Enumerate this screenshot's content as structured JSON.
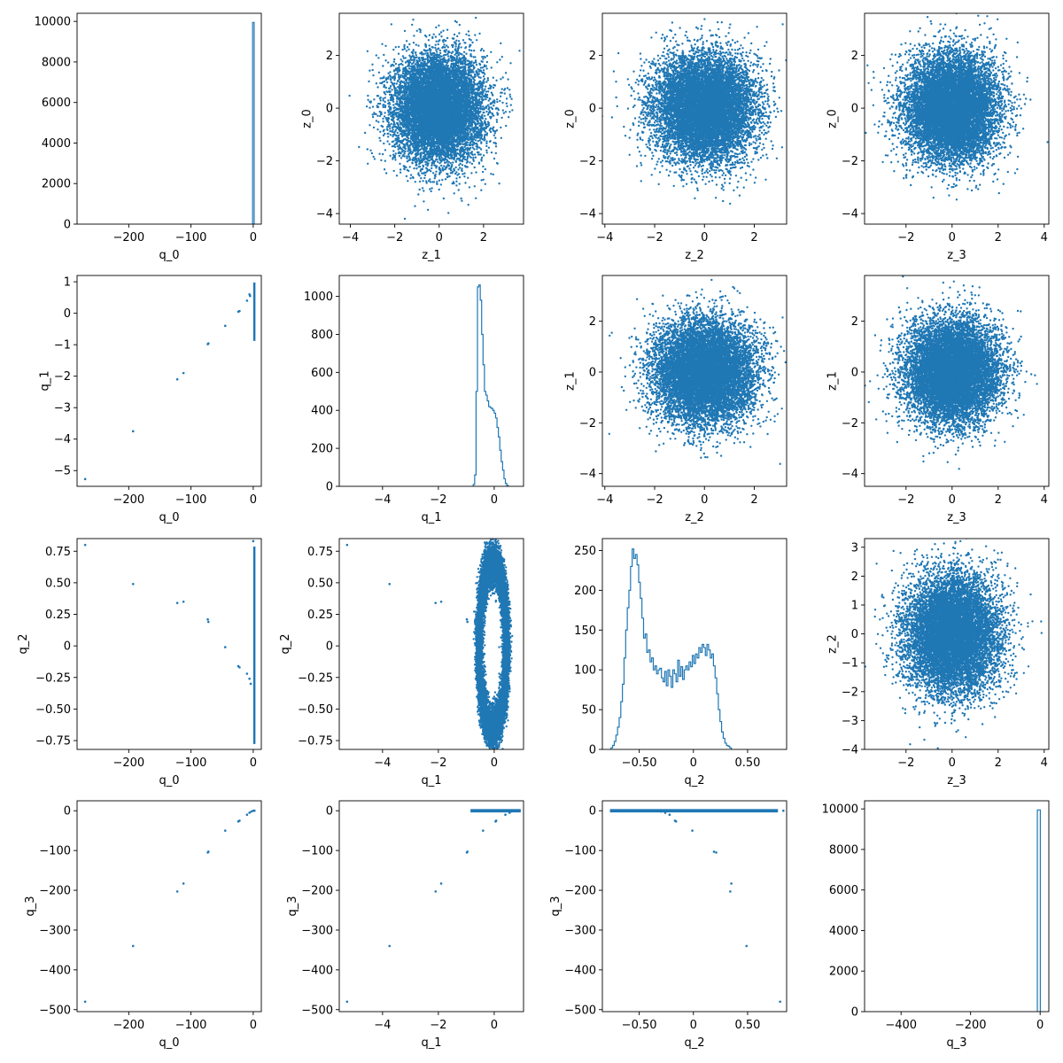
{
  "style": {
    "series_color": "#1f77b4",
    "grid": false,
    "legend": null
  },
  "chart_data": [
    {
      "type": "bar",
      "histtype": "step",
      "row": 0,
      "col": 0,
      "xlabel": "q_0",
      "ylabel": "",
      "xlim": [
        -283,
        13
      ],
      "ylim": [
        0,
        10400
      ],
      "xticks": [
        -200,
        -100,
        0
      ],
      "yticks": [
        0,
        2000,
        4000,
        6000,
        8000,
        10000
      ],
      "bins": [
        {
          "x0": -1,
          "x1": 1.5,
          "count": 9950
        }
      ]
    },
    {
      "type": "scatter",
      "dist": "normal",
      "row": 0,
      "col": 1,
      "xlabel": "z_1",
      "ylabel": "z_0",
      "xlim": [
        -4.5,
        3.8
      ],
      "ylim": [
        -4.4,
        3.6
      ],
      "xticks": [
        -4,
        -2,
        0,
        2
      ],
      "yticks": [
        -4,
        -2,
        0,
        2
      ],
      "n_points": 10000
    },
    {
      "type": "scatter",
      "dist": "normal",
      "row": 0,
      "col": 2,
      "xlabel": "z_2",
      "ylabel": "z_0",
      "xlim": [
        -4.1,
        3.3
      ],
      "ylim": [
        -4.4,
        3.6
      ],
      "xticks": [
        -4,
        -2,
        0,
        2
      ],
      "yticks": [
        -4,
        -2,
        0,
        2
      ],
      "n_points": 10000
    },
    {
      "type": "scatter",
      "dist": "normal",
      "row": 0,
      "col": 3,
      "xlabel": "z_3",
      "ylabel": "z_0",
      "xlim": [
        -3.8,
        4.2
      ],
      "ylim": [
        -4.4,
        3.6
      ],
      "xticks": [
        -2,
        0,
        2,
        4
      ],
      "yticks": [
        -4,
        -2,
        0,
        2
      ],
      "n_points": 10000
    },
    {
      "type": "scatter",
      "dist": "points",
      "row": 1,
      "col": 0,
      "xlabel": "q_0",
      "ylabel": "q_1",
      "xlim": [
        -283,
        13
      ],
      "ylim": [
        -5.5,
        1.2
      ],
      "xticks": [
        -200,
        -100,
        0
      ],
      "yticks": [
        -5,
        -4,
        -3,
        -2,
        -1,
        0,
        1
      ],
      "points": [
        [
          -270,
          -5.27
        ],
        [
          -193,
          -3.75
        ],
        [
          -122,
          -2.1
        ],
        [
          -112,
          -1.9
        ],
        [
          -73,
          -0.98
        ],
        [
          -72,
          -0.96
        ],
        [
          -45,
          -0.4
        ],
        [
          -24,
          0.05
        ],
        [
          -22,
          0.07
        ],
        [
          -10,
          0.4
        ],
        [
          -6,
          0.6
        ],
        [
          -5,
          0.55
        ]
      ],
      "band": {
        "x0": 0,
        "x1": 2,
        "y0": -0.85,
        "y1": 0.95
      }
    },
    {
      "type": "bar",
      "histtype": "step",
      "row": 1,
      "col": 1,
      "xlabel": "q_1",
      "ylabel": "",
      "xlim": [
        -5.55,
        1.05
      ],
      "ylim": [
        0,
        1110
      ],
      "xticks": [
        -4,
        -2,
        0
      ],
      "yticks": [
        0,
        200,
        400,
        600,
        800,
        1000
      ],
      "bin_start": -0.75,
      "bin_width": 0.05,
      "counts": [
        10,
        60,
        500,
        1050,
        1060,
        980,
        800,
        640,
        500,
        480,
        450,
        420,
        415,
        410,
        400,
        385,
        360,
        310,
        260,
        190,
        130,
        85,
        40,
        15,
        5
      ]
    },
    {
      "type": "scatter",
      "dist": "normal",
      "row": 1,
      "col": 2,
      "xlabel": "z_2",
      "ylabel": "z_1",
      "xlim": [
        -4.1,
        3.3
      ],
      "ylim": [
        -4.5,
        3.8
      ],
      "xticks": [
        -4,
        -2,
        0,
        2
      ],
      "yticks": [
        -4,
        -2,
        0,
        2
      ],
      "n_points": 10000
    },
    {
      "type": "scatter",
      "dist": "normal",
      "row": 1,
      "col": 3,
      "xlabel": "z_3",
      "ylabel": "z_1",
      "xlim": [
        -3.8,
        4.2
      ],
      "ylim": [
        -4.5,
        3.8
      ],
      "xticks": [
        -2,
        0,
        2,
        4
      ],
      "yticks": [
        -4,
        -2,
        0,
        2
      ],
      "n_points": 10000
    },
    {
      "type": "scatter",
      "dist": "points",
      "row": 2,
      "col": 0,
      "xlabel": "q_0",
      "ylabel": "q_2",
      "xlim": [
        -283,
        13
      ],
      "ylim": [
        -0.82,
        0.85
      ],
      "xticks": [
        -200,
        -100,
        0
      ],
      "yticks": [
        -0.75,
        -0.5,
        -0.25,
        0,
        0.25,
        0.5,
        0.75
      ],
      "points": [
        [
          -270,
          0.8
        ],
        [
          -193,
          0.49
        ],
        [
          -122,
          0.34
        ],
        [
          -112,
          0.35
        ],
        [
          -73,
          0.21
        ],
        [
          -72,
          0.19
        ],
        [
          -45,
          -0.01
        ],
        [
          -24,
          -0.16
        ],
        [
          -22,
          -0.17
        ],
        [
          -10,
          -0.22
        ],
        [
          -6,
          -0.26
        ],
        [
          -4,
          -0.3
        ],
        [
          0,
          0.83
        ]
      ],
      "band": {
        "x0": 0,
        "x1": 2,
        "y0": -0.77,
        "y1": 0.78
      }
    },
    {
      "type": "scatter",
      "dist": "ring",
      "row": 2,
      "col": 1,
      "xlabel": "q_1",
      "ylabel": "q_2",
      "xlim": [
        -5.55,
        1.05
      ],
      "ylim": [
        -0.82,
        0.85
      ],
      "xticks": [
        -4,
        -2,
        0
      ],
      "yticks": [
        -0.75,
        -0.5,
        -0.25,
        0,
        0.25,
        0.5,
        0.75
      ],
      "n_points": 10000,
      "points": [
        [
          -5.27,
          0.8
        ],
        [
          -3.75,
          0.49
        ],
        [
          -2.1,
          0.34
        ],
        [
          -1.9,
          0.35
        ],
        [
          -0.98,
          0.21
        ],
        [
          -0.96,
          0.19
        ]
      ]
    },
    {
      "type": "bar",
      "histtype": "step",
      "row": 2,
      "col": 2,
      "xlabel": "q_2",
      "ylabel": "",
      "xlim": [
        -0.84,
        0.86
      ],
      "ylim": [
        0,
        265
      ],
      "xticks": [
        -0.5,
        0,
        0.5
      ],
      "yticks": [
        0,
        50,
        100,
        150,
        200,
        250
      ],
      "bin_start": -0.76,
      "bin_width": 0.015,
      "counts": [
        2,
        5,
        10,
        18,
        28,
        40,
        60,
        82,
        115,
        150,
        178,
        200,
        230,
        252,
        240,
        245,
        232,
        210,
        190,
        165,
        140,
        145,
        122,
        125,
        110,
        115,
        100,
        105,
        95,
        100,
        102,
        90,
        85,
        98,
        80,
        100,
        92,
        78,
        100,
        95,
        85,
        112,
        92,
        104,
        88,
        100,
        105,
        100,
        110,
        104,
        118,
        108,
        120,
        115,
        128,
        122,
        132,
        128,
        118,
        132,
        125,
        115,
        120,
        105,
        90,
        70,
        50,
        35,
        22,
        14,
        8,
        5,
        4,
        2
      ]
    },
    {
      "type": "scatter",
      "dist": "normal",
      "row": 2,
      "col": 3,
      "xlabel": "z_3",
      "ylabel": "z_2",
      "xlim": [
        -3.8,
        4.2
      ],
      "ylim": [
        -4.0,
        3.3
      ],
      "xticks": [
        -2,
        0,
        2,
        4
      ],
      "yticks": [
        -4,
        -3,
        -2,
        -1,
        0,
        1,
        2,
        3
      ],
      "n_points": 10000
    },
    {
      "type": "scatter",
      "dist": "points",
      "row": 3,
      "col": 0,
      "xlabel": "q_0",
      "ylabel": "q_3",
      "xlim": [
        -283,
        13
      ],
      "ylim": [
        -505,
        25
      ],
      "xticks": [
        -200,
        -100,
        0
      ],
      "yticks": [
        -500,
        -400,
        -300,
        -200,
        -100,
        0
      ],
      "points": [
        [
          -270,
          -480
        ],
        [
          -193,
          -340
        ],
        [
          -122,
          -203
        ],
        [
          -112,
          -183
        ],
        [
          -73,
          -105
        ],
        [
          -72,
          -103
        ],
        [
          -45,
          -50
        ],
        [
          -24,
          -27
        ],
        [
          -22,
          -25
        ],
        [
          -10,
          -10
        ],
        [
          -6,
          -5
        ],
        [
          -3,
          -2
        ],
        [
          0,
          0
        ],
        [
          2,
          0
        ]
      ]
    },
    {
      "type": "scatter",
      "dist": "points",
      "row": 3,
      "col": 1,
      "xlabel": "q_1",
      "ylabel": "q_3",
      "xlim": [
        -5.55,
        1.05
      ],
      "ylim": [
        -505,
        25
      ],
      "xticks": [
        -4,
        -2,
        0
      ],
      "yticks": [
        -500,
        -400,
        -300,
        -200,
        -100,
        0
      ],
      "points": [
        [
          -5.27,
          -480
        ],
        [
          -3.75,
          -340
        ],
        [
          -2.1,
          -203
        ],
        [
          -1.9,
          -183
        ],
        [
          -0.98,
          -105
        ],
        [
          -0.96,
          -103
        ],
        [
          -0.4,
          -50
        ],
        [
          0.05,
          -27
        ],
        [
          0.07,
          -25
        ],
        [
          0.4,
          -10
        ],
        [
          0.55,
          -5
        ],
        [
          0.6,
          -2
        ]
      ],
      "band": {
        "x0": -0.85,
        "x1": 0.95,
        "y0": -2,
        "y1": 2
      }
    },
    {
      "type": "scatter",
      "dist": "points",
      "row": 3,
      "col": 2,
      "xlabel": "q_2",
      "ylabel": "q_3",
      "xlim": [
        -0.84,
        0.86
      ],
      "ylim": [
        -505,
        25
      ],
      "xticks": [
        -0.5,
        0,
        0.5
      ],
      "yticks": [
        -500,
        -400,
        -300,
        -200,
        -100,
        0
      ],
      "points": [
        [
          0.8,
          -480
        ],
        [
          0.49,
          -340
        ],
        [
          0.34,
          -203
        ],
        [
          0.35,
          -183
        ],
        [
          0.21,
          -105
        ],
        [
          0.19,
          -103
        ],
        [
          -0.01,
          -50
        ],
        [
          -0.16,
          -27
        ],
        [
          -0.17,
          -25
        ],
        [
          -0.22,
          -10
        ],
        [
          -0.26,
          -5
        ],
        [
          -0.3,
          -2
        ],
        [
          0.83,
          0
        ]
      ],
      "band": {
        "x0": -0.77,
        "x1": 0.78,
        "y0": -2,
        "y1": 2
      }
    },
    {
      "type": "bar",
      "histtype": "step",
      "row": 3,
      "col": 3,
      "xlabel": "q_3",
      "ylabel": "",
      "xlim": [
        -505,
        25
      ],
      "ylim": [
        0,
        10400
      ],
      "xticks": [
        -400,
        -200,
        0
      ],
      "yticks": [
        0,
        2000,
        4000,
        6000,
        8000,
        10000
      ],
      "bins": [
        {
          "x0": -8,
          "x1": 0.5,
          "count": 9950
        }
      ]
    }
  ]
}
